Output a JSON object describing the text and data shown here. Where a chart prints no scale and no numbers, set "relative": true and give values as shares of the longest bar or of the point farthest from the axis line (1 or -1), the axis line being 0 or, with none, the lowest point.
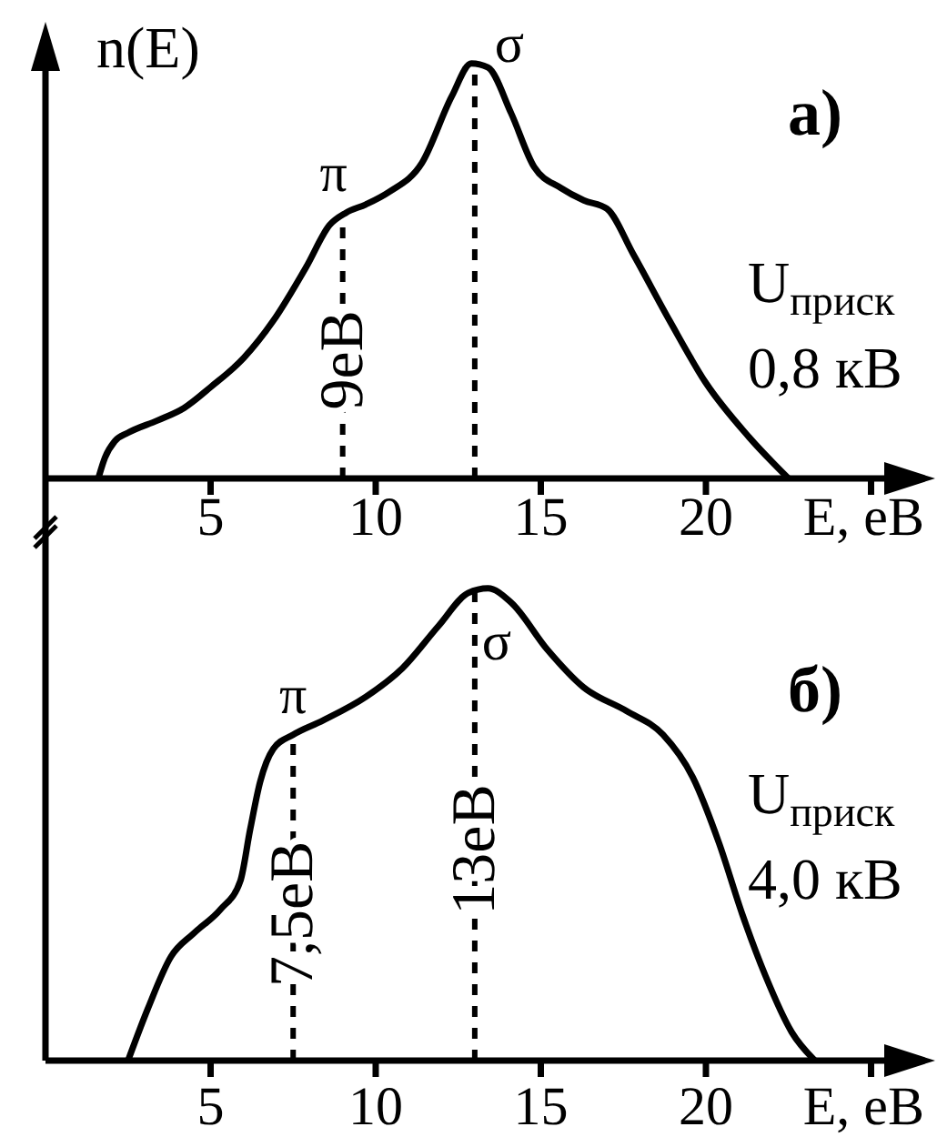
{
  "chart_data": [
    {
      "type": "line",
      "title": "а)",
      "xlabel": "E, еВ",
      "ylabel": "n(E)",
      "relative": true,
      "xlim": [
        0,
        25.4
      ],
      "xticks": [
        5,
        10,
        15,
        20,
        {
          "value": 25,
          "label": null
        }
      ],
      "color": "#000000",
      "x": [
        1.6,
        1.8,
        2.1,
        2.5,
        3.4,
        4.2,
        5.0,
        6.0,
        6.9,
        7.9,
        8.6,
        9.1,
        9.7,
        10.4,
        11.4,
        12.3,
        12.9,
        13.4,
        14.1,
        14.8,
        15.6,
        16.3,
        17.0,
        17.8,
        18.9,
        20.0,
        21.3,
        22.5
      ],
      "values": [
        0,
        0.05,
        0.09,
        0.11,
        0.14,
        0.17,
        0.22,
        0.29,
        0.38,
        0.51,
        0.61,
        0.64,
        0.66,
        0.69,
        0.76,
        0.92,
        1.0,
        0.99,
        0.88,
        0.75,
        0.7,
        0.67,
        0.65,
        0.54,
        0.38,
        0.23,
        0.1,
        0
      ],
      "ref_lines": [
        {
          "axis": "x",
          "value": 9,
          "label": "9еВ",
          "line_style": "dashed",
          "color": "#000000"
        },
        {
          "axis": "x",
          "value": 13,
          "line_style": "dashed",
          "color": "#000000"
        }
      ],
      "annotations": [
        {
          "text": "π",
          "x": 9,
          "y": 0.64
        },
        {
          "text": "σ",
          "x": 13,
          "y": 1
        },
        "U$_{приск}$",
        "0,8 кВ"
      ]
    },
    {
      "type": "line",
      "title": "б)",
      "xlabel": "E, еВ",
      "relative": true,
      "xlim": [
        0,
        25.4
      ],
      "xticks": [
        5,
        10,
        15,
        20,
        {
          "value": 25,
          "label": null
        }
      ],
      "color": "#000000",
      "x": [
        2.5,
        3.1,
        3.8,
        4.5,
        5.3,
        5.9,
        6.2,
        6.5,
        6.9,
        7.5,
        8.4,
        9.7,
        10.8,
        11.9,
        12.8,
        13.4,
        14.1,
        15.2,
        16.3,
        17.6,
        18.7,
        19.6,
        20.4,
        21.1,
        21.8,
        22.6,
        23.3
      ],
      "values": [
        0,
        0.11,
        0.22,
        0.27,
        0.32,
        0.38,
        0.49,
        0.59,
        0.66,
        0.69,
        0.72,
        0.77,
        0.83,
        0.92,
        0.99,
        1.0,
        0.97,
        0.87,
        0.79,
        0.74,
        0.69,
        0.6,
        0.46,
        0.31,
        0.18,
        0.06,
        0
      ],
      "ref_lines": [
        {
          "axis": "x",
          "value": 7.5,
          "label": "7,5еВ",
          "line_style": "dashed",
          "color": "#000000"
        },
        {
          "axis": "x",
          "value": 13,
          "label": "13еВ",
          "line_style": "dashed",
          "color": "#000000"
        }
      ],
      "annotations": [
        {
          "text": "π",
          "x": 7.5,
          "y": 0.69
        },
        {
          "text": "σ",
          "x": 13,
          "y": 1
        },
        "U$_{приск}$",
        "4,0 кВ"
      ]
    }
  ]
}
